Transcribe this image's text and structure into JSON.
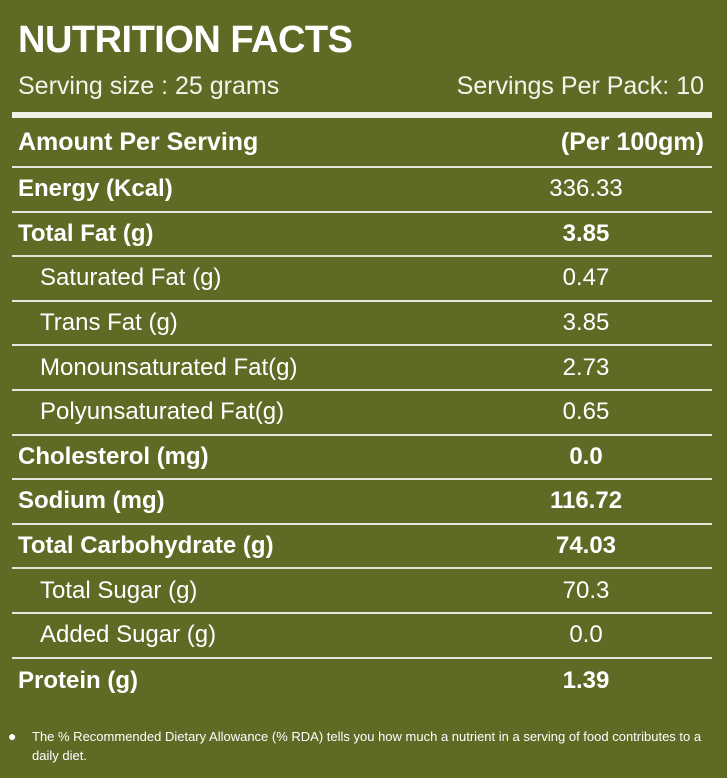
{
  "title": "NUTRITION FACTS",
  "serving_size": "Serving size : 25 grams",
  "servings_per_pack": "Servings Per Pack: 10",
  "header": {
    "label": "Amount Per Serving",
    "column": "(Per 100gm)"
  },
  "rows": [
    {
      "name": "Energy (Kcal)",
      "value": "336.33"
    },
    {
      "name": "Total Fat (g)",
      "value": "3.85"
    },
    {
      "name": "Saturated Fat (g)",
      "value": "0.47"
    },
    {
      "name": "Trans Fat (g)",
      "value": "3.85"
    },
    {
      "name": "Monounsaturated Fat(g)",
      "value": "2.73"
    },
    {
      "name": "Polyunsaturated Fat(g)",
      "value": "0.65"
    },
    {
      "name": "Cholesterol (mg)",
      "value": "0.0"
    },
    {
      "name": "Sodium (mg)",
      "value": "116.72"
    },
    {
      "name": "Total Carbohydrate (g)",
      "value": "74.03"
    },
    {
      "name": "Total Sugar (g)",
      "value": "70.3"
    },
    {
      "name": "Added Sugar (g)",
      "value": "0.0"
    },
    {
      "name": "Protein (g)",
      "value": "1.39"
    }
  ],
  "footnote": {
    "bullet": "●",
    "text": "The % Recommended Dietary Allowance (% RDA) tells you how much a nutrient in a serving of food contributes to a daily diet."
  },
  "colors": {
    "background": "#5f6a25",
    "text": "#ffffff",
    "rule": "#e6e6d8"
  }
}
